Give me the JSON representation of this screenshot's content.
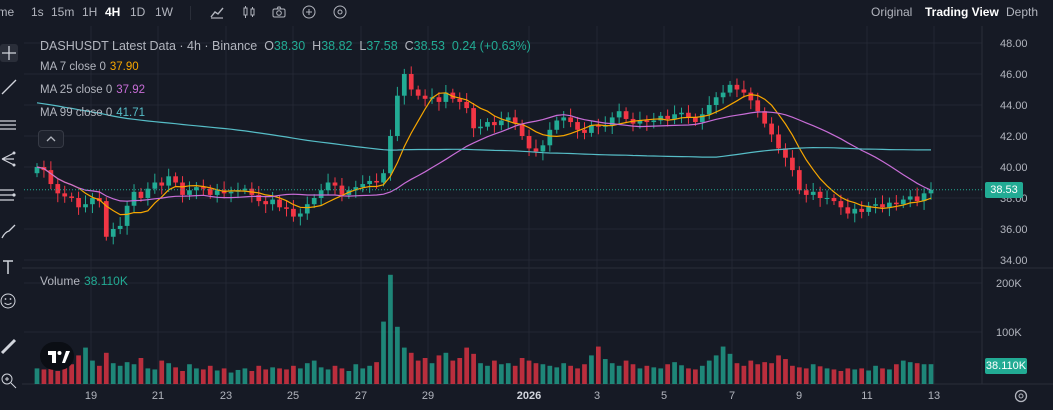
{
  "toolbar": {
    "time_label": "Time",
    "intervals": [
      "1s",
      "15m",
      "1H",
      "4H",
      "1D",
      "1W"
    ],
    "active_interval": "4H",
    "view_modes": [
      "Original",
      "Trading View",
      "Depth"
    ],
    "active_view": "Trading View"
  },
  "header": {
    "symbol": "DASHUSDT Latest Data · 4h · Binance",
    "o_label": "O",
    "o_value": "38.30",
    "h_label": "H",
    "h_value": "38.82",
    "l_label": "L",
    "l_value": "37.58",
    "c_label": "C",
    "c_value": "38.53",
    "change": "0.24 (+0.63%)"
  },
  "indicators": [
    {
      "label": "MA 7 close 0",
      "value": "37.90",
      "color": "#f7a600"
    },
    {
      "label": "MA 25 close 0",
      "value": "37.92",
      "color": "#c86dd7"
    },
    {
      "label": "MA 99 close 0",
      "value": "41.71",
      "color": "#56bdc7"
    }
  ],
  "volume": {
    "label": "Volume",
    "value": "38.110K",
    "axis_ticks": [
      "200K",
      "100K"
    ],
    "last_tag": "38.110K"
  },
  "price_axis": {
    "ticks": [
      "48.00",
      "46.00",
      "44.00",
      "42.00",
      "40.00",
      "38.00",
      "36.00",
      "34.00"
    ],
    "last_price_tag": "38.53"
  },
  "time_axis": {
    "ticks": [
      "19",
      "21",
      "23",
      "25",
      "27",
      "29",
      "2026",
      "3",
      "5",
      "7",
      "9",
      "11",
      "13"
    ]
  },
  "colors": {
    "up": "#22ab94",
    "down": "#f23645",
    "bg": "#161a25",
    "grid": "#232733",
    "ma7": "#f7a600",
    "ma25": "#c86dd7",
    "ma99": "#56bdc7"
  },
  "chart_data": {
    "type": "candlestick",
    "symbol": "DASHUSDT",
    "interval": "4h",
    "ylim": [
      34,
      48
    ],
    "x_ticks": [
      "19",
      "21",
      "23",
      "25",
      "27",
      "29",
      "2026",
      "3",
      "5",
      "7",
      "9",
      "11",
      "13"
    ],
    "close": [
      40.0,
      39.8,
      38.9,
      38.3,
      38.1,
      38.0,
      37.4,
      37.6,
      38.0,
      37.8,
      35.5,
      36.0,
      36.2,
      37.5,
      38.4,
      38.0,
      38.6,
      39.0,
      38.8,
      39.4,
      39.0,
      38.2,
      38.5,
      38.7,
      38.6,
      38.2,
      38.5,
      38.3,
      38.4,
      38.5,
      38.6,
      38.2,
      37.8,
      37.6,
      37.9,
      37.4,
      37.3,
      36.8,
      37.0,
      37.6,
      38.0,
      38.5,
      39.0,
      38.8,
      38.2,
      38.5,
      38.7,
      38.9,
      39.1,
      39.0,
      39.6,
      42.0,
      44.6,
      46.0,
      45.0,
      44.6,
      44.4,
      44.5,
      44.2,
      44.8,
      44.4,
      44.2,
      43.8,
      42.5,
      42.6,
      42.9,
      42.7,
      43.0,
      43.2,
      42.8,
      42.0,
      41.2,
      41.0,
      41.4,
      42.4,
      43.0,
      43.2,
      42.9,
      42.4,
      42.2,
      42.7,
      42.6,
      42.7,
      43.2,
      43.6,
      43.1,
      42.8,
      43.0,
      42.9,
      43.0,
      43.3,
      43.1,
      43.4,
      43.5,
      43.2,
      42.9,
      43.4,
      44.0,
      44.5,
      44.8,
      45.3,
      45.0,
      44.8,
      44.3,
      43.6,
      42.8,
      42.1,
      41.2,
      40.6,
      39.8,
      38.5,
      38.2,
      38.4,
      38.0,
      38.0,
      37.8,
      37.4,
      37.0,
      37.3,
      37.1,
      37.5,
      37.6,
      37.4,
      37.7,
      37.6,
      37.9,
      38.1,
      37.8,
      38.3,
      38.53
    ],
    "volume_k": [
      30,
      28,
      35,
      25,
      40,
      38,
      55,
      70,
      45,
      35,
      60,
      40,
      35,
      42,
      38,
      50,
      30,
      28,
      45,
      40,
      32,
      25,
      38,
      30,
      28,
      35,
      26,
      30,
      22,
      27,
      30,
      25,
      35,
      28,
      32,
      30,
      28,
      35,
      30,
      40,
      45,
      32,
      28,
      35,
      30,
      25,
      38,
      30,
      35,
      42,
      120,
      210,
      110,
      70,
      60,
      45,
      50,
      40,
      55,
      60,
      45,
      50,
      70,
      58,
      40,
      35,
      45,
      38,
      40,
      35,
      50,
      45,
      40,
      38,
      35,
      32,
      40,
      35,
      30,
      38,
      55,
      72,
      48,
      40,
      35,
      45,
      38,
      30,
      35,
      32,
      30,
      38,
      42,
      36,
      30,
      28,
      35,
      45,
      55,
      72,
      58,
      40,
      35,
      45,
      38,
      42,
      40,
      55,
      48,
      35,
      32,
      30,
      38,
      34,
      30,
      28,
      25,
      30,
      28,
      30,
      26,
      35,
      30,
      28,
      38,
      45,
      42,
      40,
      38,
      38.11
    ],
    "ma7_last": 37.9,
    "ma25_last": 37.92,
    "ma99_last": 41.71
  }
}
